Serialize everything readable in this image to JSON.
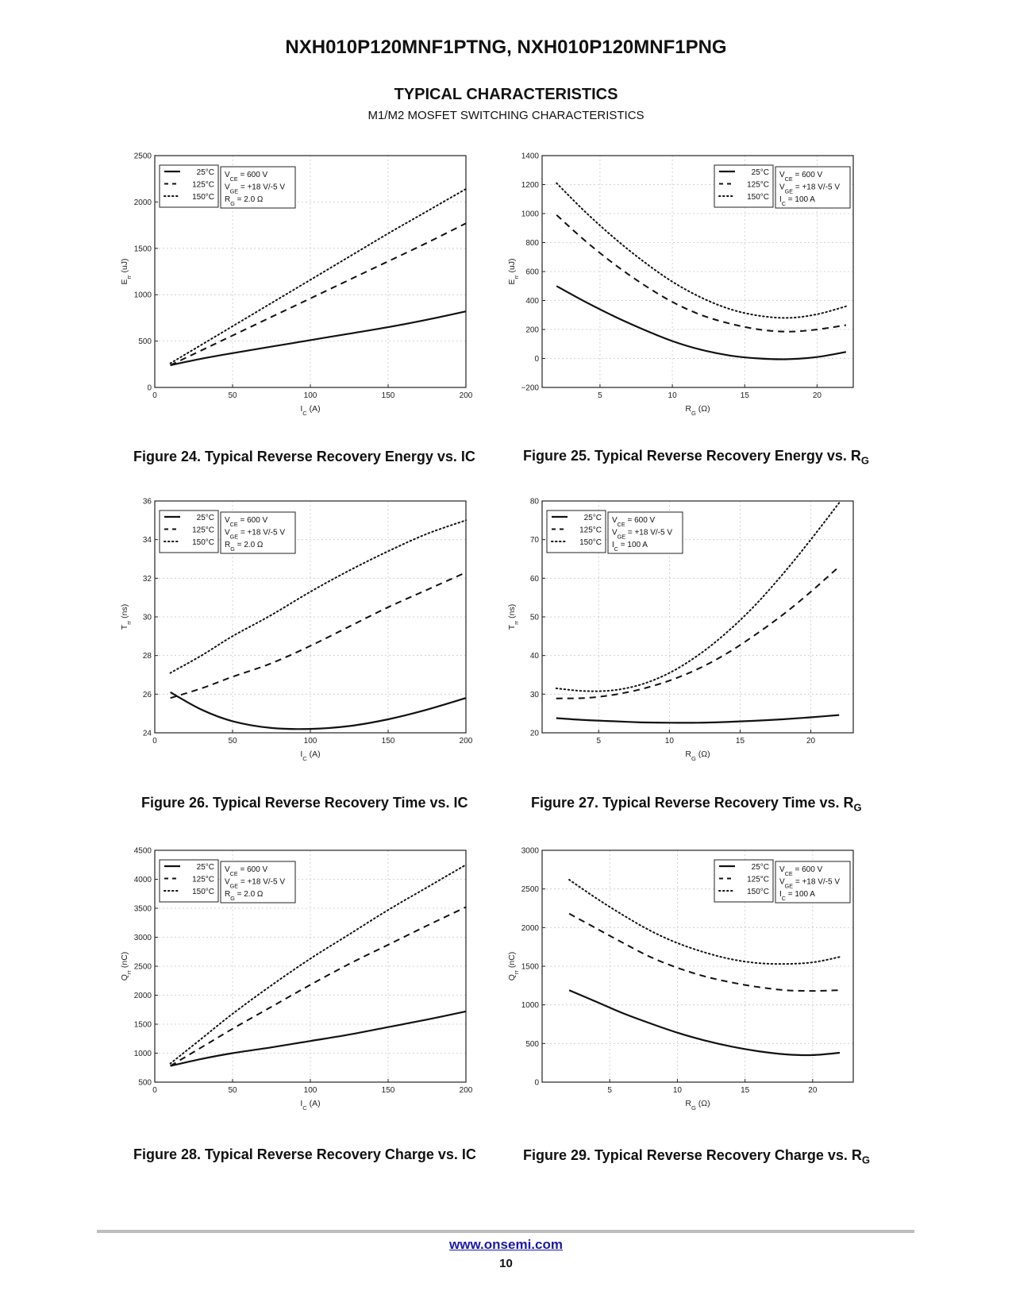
{
  "header": {
    "doc_title": "NXH010P120MNF1PTNG, NXH010P120MNF1PNG",
    "section_title": "TYPICAL CHARACTERISTICS",
    "section_subtitle": "M1/M2 MOSFET SWITCHING CHARACTERISTICS"
  },
  "footer": {
    "link": "www.onsemi.com",
    "page": "10"
  },
  "legend_series": [
    "25°C",
    "125°C",
    "150°C"
  ],
  "chart_data": [
    {
      "id": "fig24",
      "type": "line",
      "caption": "Figure 24. Typical Reverse Recovery Energy vs. IC",
      "ylabel": "E_rr (uJ)",
      "xlabel": "I_C (A)",
      "xlim": [
        0,
        200
      ],
      "ylim": [
        0,
        2500
      ],
      "xticks": [
        0,
        50,
        100,
        150,
        200
      ],
      "yticks": [
        0,
        500,
        1000,
        1500,
        2000,
        2500
      ],
      "grid": true,
      "legend_position": "top-left",
      "conditions": [
        "V_CE = 600 V",
        "V_GE = +18 V/-5 V",
        "R_G = 2.0 Ω"
      ],
      "x": [
        10,
        30,
        50,
        75,
        100,
        125,
        150,
        175,
        200
      ],
      "series": [
        {
          "name": "25°C",
          "style": "solid",
          "values": [
            240,
            310,
            370,
            440,
            510,
            580,
            650,
            730,
            820
          ]
        },
        {
          "name": "125°C",
          "style": "dashed",
          "values": [
            240,
            400,
            560,
            760,
            960,
            1160,
            1360,
            1560,
            1770
          ]
        },
        {
          "name": "150°C",
          "style": "dotted",
          "values": [
            260,
            460,
            660,
            910,
            1160,
            1410,
            1660,
            1900,
            2140
          ]
        }
      ]
    },
    {
      "id": "fig25",
      "type": "line",
      "caption": "Figure 25. Typical Reverse Recovery Energy vs. R_G",
      "ylabel": "E_rr (uJ)",
      "xlabel": "R_G (Ω)",
      "xlim": [
        1,
        22.5
      ],
      "ylim": [
        -200,
        1400
      ],
      "xticks": [
        5,
        10,
        15,
        20
      ],
      "yticks": [
        -200,
        0,
        200,
        400,
        600,
        800,
        1000,
        1200,
        1400
      ],
      "grid": true,
      "legend_position": "top-right",
      "conditions": [
        "V_CE = 600 V",
        "V_GE = +18 V/-5 V",
        "I_C = 100 A"
      ],
      "x": [
        2,
        4,
        6,
        8,
        10,
        12,
        14,
        16,
        18,
        20,
        22
      ],
      "series": [
        {
          "name": "25°C",
          "style": "solid",
          "values": [
            500,
            390,
            290,
            200,
            120,
            60,
            20,
            0,
            -5,
            10,
            45
          ]
        },
        {
          "name": "125°C",
          "style": "dashed",
          "values": [
            990,
            810,
            650,
            510,
            390,
            300,
            240,
            200,
            185,
            200,
            230
          ]
        },
        {
          "name": "150°C",
          "style": "dotted",
          "values": [
            1210,
            1010,
            830,
            670,
            530,
            420,
            340,
            295,
            280,
            305,
            360
          ]
        }
      ]
    },
    {
      "id": "fig26",
      "type": "line",
      "caption": "Figure 26. Typical Reverse Recovery Time vs. IC",
      "ylabel": "T_rr (ns)",
      "xlabel": "I_C (A)",
      "xlim": [
        0,
        200
      ],
      "ylim": [
        24,
        36
      ],
      "xticks": [
        0,
        50,
        100,
        150,
        200
      ],
      "yticks": [
        24,
        26,
        28,
        30,
        32,
        34,
        36
      ],
      "grid": true,
      "legend_position": "top-left",
      "conditions": [
        "V_CE = 600 V",
        "V_GE = +18 V/-5 V",
        "R_G = 2.0 Ω"
      ],
      "x": [
        10,
        30,
        50,
        75,
        100,
        125,
        150,
        175,
        200
      ],
      "series": [
        {
          "name": "25°C",
          "style": "solid",
          "values": [
            26.1,
            25.2,
            24.6,
            24.25,
            24.2,
            24.35,
            24.7,
            25.2,
            25.8
          ]
        },
        {
          "name": "125°C",
          "style": "dashed",
          "values": [
            25.8,
            26.3,
            26.9,
            27.6,
            28.5,
            29.5,
            30.5,
            31.4,
            32.3
          ]
        },
        {
          "name": "150°C",
          "style": "dotted",
          "values": [
            27.1,
            28.0,
            29.0,
            30.1,
            31.3,
            32.4,
            33.4,
            34.3,
            35.0
          ]
        }
      ]
    },
    {
      "id": "fig27",
      "type": "line",
      "caption": "Figure 27. Typical Reverse Recovery Time vs. R_G",
      "ylabel": "T_rr (ns)",
      "xlabel": "R_G (Ω)",
      "xlim": [
        1,
        23
      ],
      "ylim": [
        20,
        80
      ],
      "xticks": [
        5,
        10,
        15,
        20
      ],
      "yticks": [
        20,
        30,
        40,
        50,
        60,
        70,
        80
      ],
      "grid": true,
      "legend_position": "top-left",
      "conditions": [
        "V_CE = 600 V",
        "V_GE = +18 V/-5 V",
        "I_C = 100 A"
      ],
      "x": [
        2,
        4,
        6,
        8,
        10,
        12,
        14,
        16,
        18,
        20,
        22
      ],
      "series": [
        {
          "name": "25°C",
          "style": "solid",
          "values": [
            23.8,
            23.3,
            23.0,
            22.7,
            22.6,
            22.6,
            22.8,
            23.1,
            23.5,
            24.0,
            24.6
          ]
        },
        {
          "name": "125°C",
          "style": "dashed",
          "values": [
            28.9,
            29.0,
            29.8,
            31.3,
            33.5,
            36.5,
            40.4,
            45.2,
            50.5,
            56.5,
            63.0
          ]
        },
        {
          "name": "150°C",
          "style": "dotted",
          "values": [
            31.5,
            30.8,
            31.0,
            32.5,
            35.5,
            40.0,
            45.8,
            52.8,
            61.0,
            70.0,
            79.5
          ]
        }
      ]
    },
    {
      "id": "fig28",
      "type": "line",
      "caption": "Figure 28. Typical Reverse Recovery Charge vs. IC",
      "ylabel": "Q_rr (nC)",
      "xlabel": "I_C (A)",
      "xlim": [
        0,
        200
      ],
      "ylim": [
        500,
        4500
      ],
      "xticks": [
        0,
        50,
        100,
        150,
        200
      ],
      "yticks": [
        500,
        1000,
        1500,
        2000,
        2500,
        3000,
        3500,
        4000,
        4500
      ],
      "grid": true,
      "legend_position": "top-left",
      "conditions": [
        "V_CE = 600 V",
        "V_GE = +18 V/-5 V",
        "R_G = 2.0 Ω"
      ],
      "x": [
        10,
        30,
        50,
        75,
        100,
        125,
        150,
        175,
        200
      ],
      "series": [
        {
          "name": "25°C",
          "style": "solid",
          "values": [
            780,
            900,
            1000,
            1100,
            1210,
            1320,
            1450,
            1580,
            1720
          ]
        },
        {
          "name": "125°C",
          "style": "dashed",
          "values": [
            780,
            1100,
            1420,
            1800,
            2180,
            2540,
            2870,
            3200,
            3520
          ]
        },
        {
          "name": "150°C",
          "style": "dotted",
          "values": [
            820,
            1250,
            1680,
            2170,
            2630,
            3050,
            3470,
            3860,
            4250
          ]
        }
      ]
    },
    {
      "id": "fig29",
      "type": "line",
      "caption": "Figure 29. Typical Reverse Recovery Charge vs. R_G",
      "ylabel": "Q_rr (nC)",
      "xlabel": "R_G (Ω)",
      "xlim": [
        0,
        23
      ],
      "ylim": [
        0,
        3000
      ],
      "xticks": [
        5,
        10,
        15,
        20
      ],
      "yticks": [
        0,
        500,
        1000,
        1500,
        2000,
        2500,
        3000
      ],
      "grid": true,
      "legend_position": "top-right",
      "conditions": [
        "V_CE = 600 V",
        "V_GE = +18 V/-5 V",
        "I_C = 100 A"
      ],
      "x": [
        2,
        4,
        6,
        8,
        10,
        12,
        14,
        16,
        18,
        20,
        22
      ],
      "series": [
        {
          "name": "25°C",
          "style": "solid",
          "values": [
            1190,
            1040,
            890,
            760,
            640,
            540,
            460,
            400,
            360,
            350,
            380
          ]
        },
        {
          "name": "125°C",
          "style": "dashed",
          "values": [
            2180,
            1990,
            1800,
            1620,
            1480,
            1370,
            1290,
            1230,
            1190,
            1180,
            1190
          ]
        },
        {
          "name": "150°C",
          "style": "dotted",
          "values": [
            2620,
            2380,
            2160,
            1960,
            1800,
            1680,
            1590,
            1540,
            1530,
            1550,
            1620
          ]
        }
      ]
    }
  ]
}
